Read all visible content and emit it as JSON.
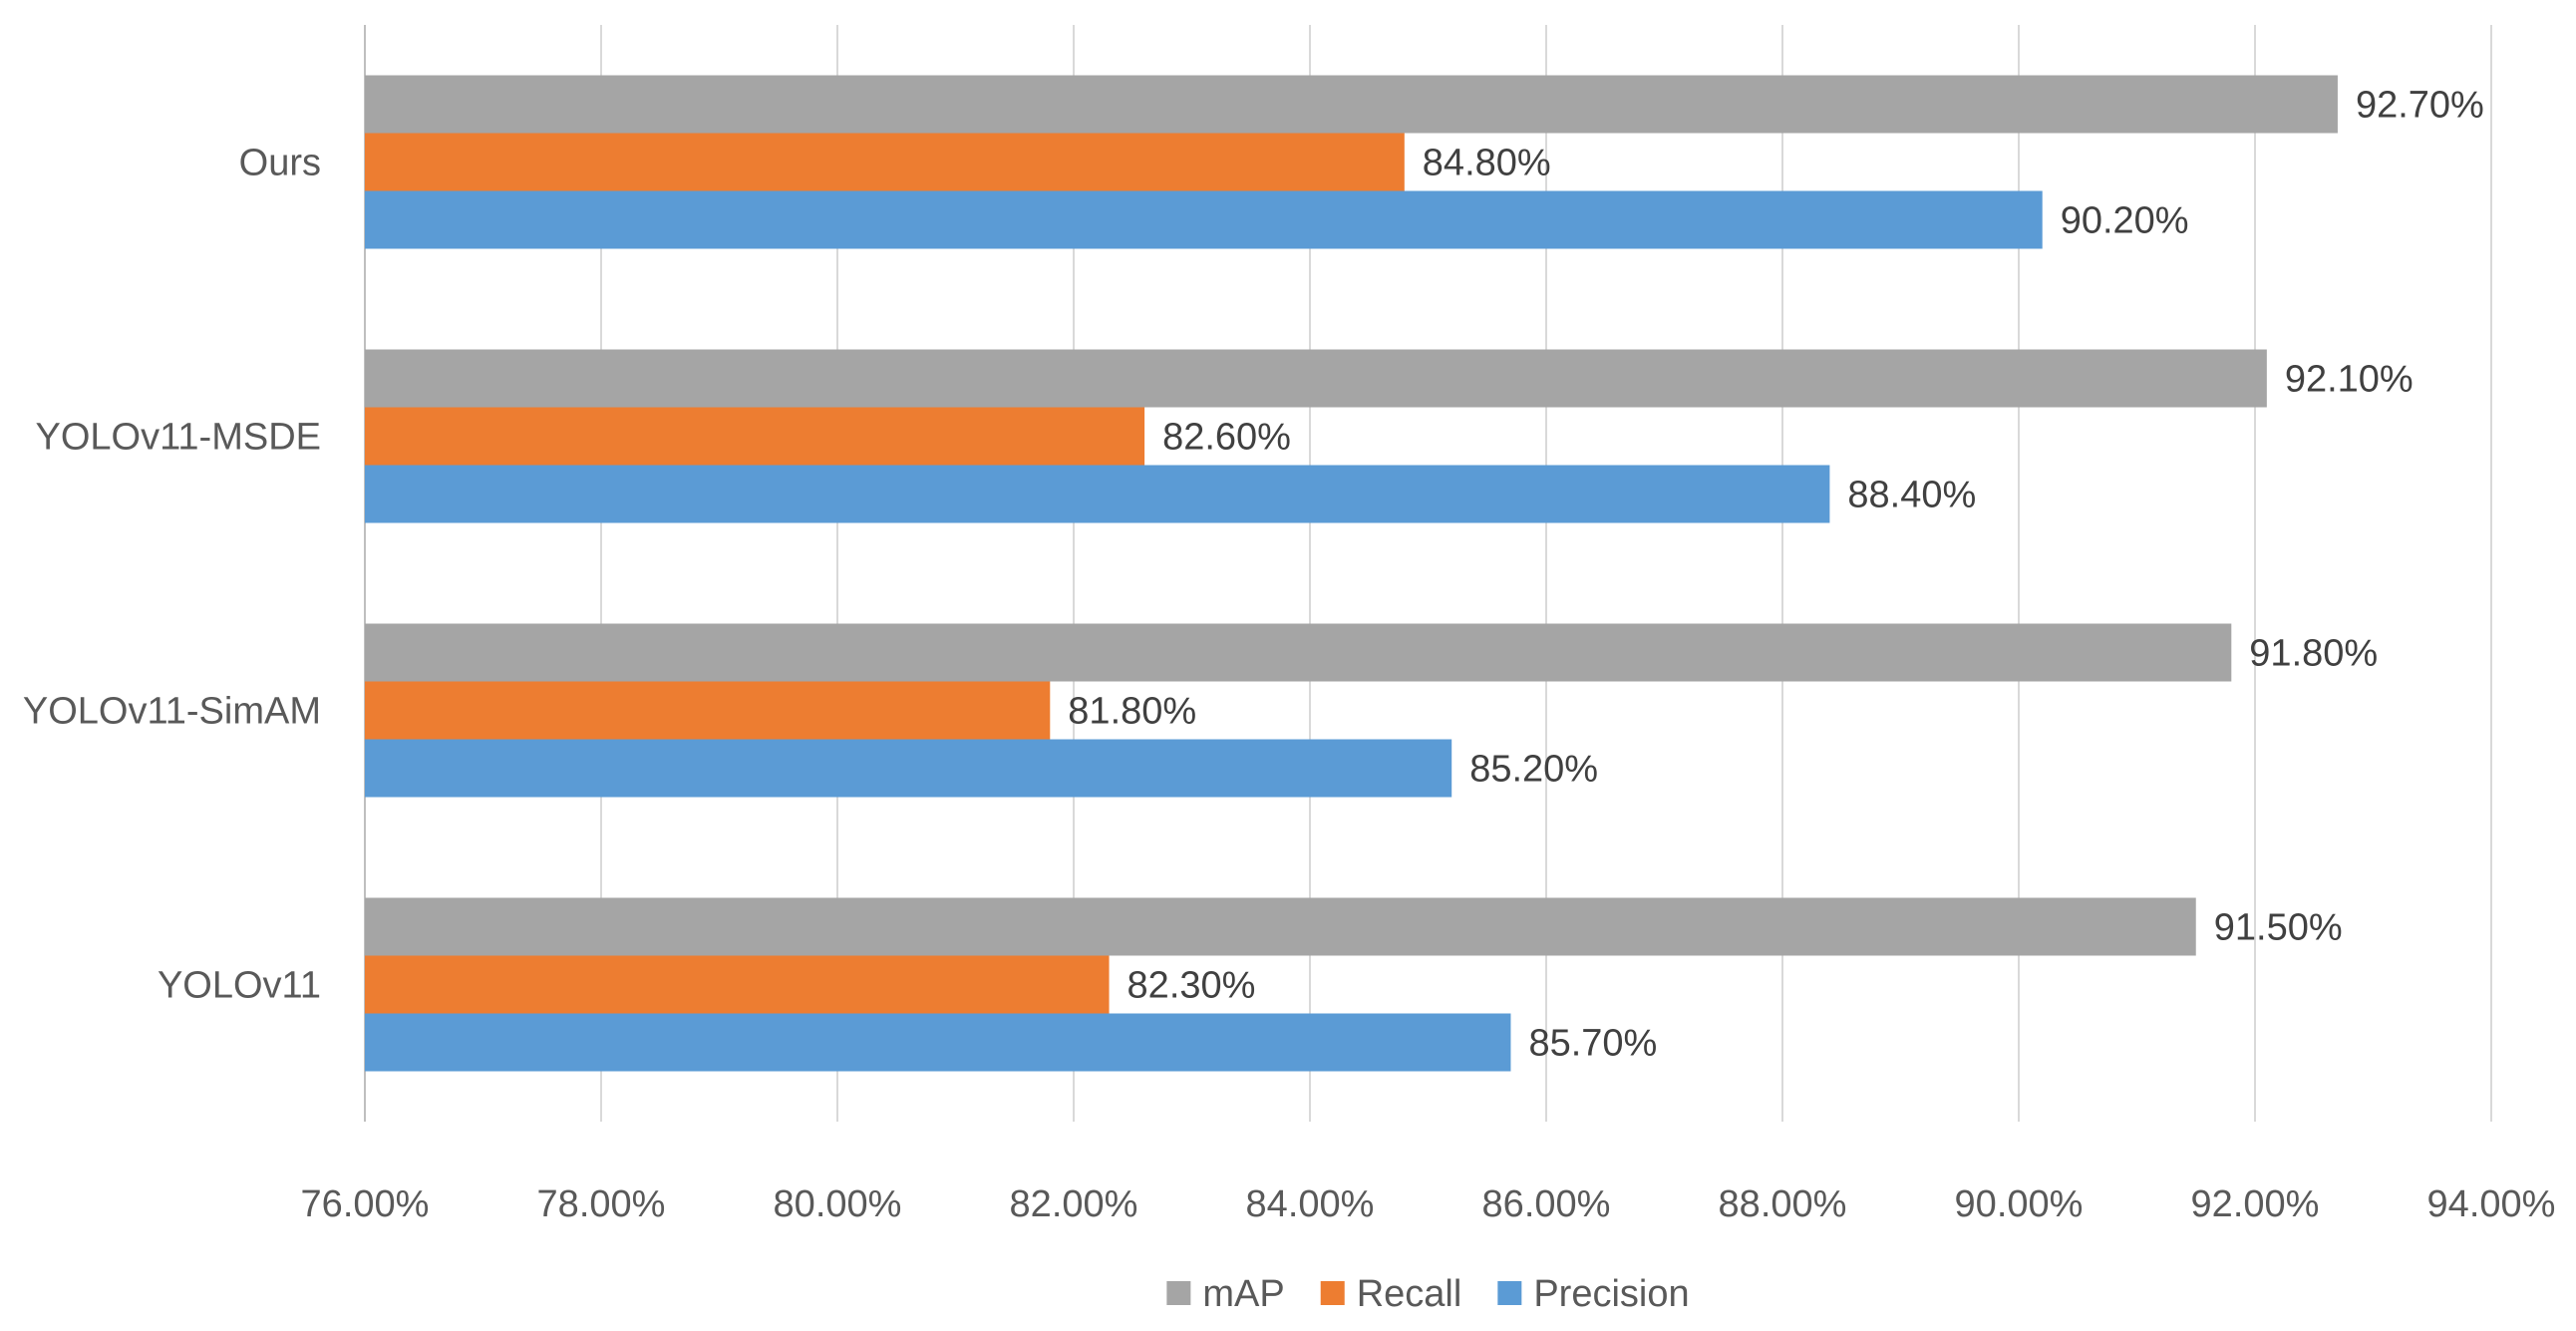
{
  "chart_data": {
    "type": "bar",
    "orientation": "horizontal",
    "categories": [
      "Ours",
      "YOLOv11-MSDE",
      "YOLOv11-SimAM",
      "YOLOv11"
    ],
    "series": [
      {
        "name": "mAP",
        "color": "#a5a5a5",
        "values": [
          92.7,
          92.1,
          91.8,
          91.5
        ],
        "labels": [
          "92.70%",
          "92.10%",
          "91.80%",
          "91.50%"
        ]
      },
      {
        "name": "Recall",
        "color": "#ed7d31",
        "values": [
          84.8,
          82.6,
          81.8,
          82.3
        ],
        "labels": [
          "84.80%",
          "82.60%",
          "81.80%",
          "82.30%"
        ]
      },
      {
        "name": "Precision",
        "color": "#5b9bd5",
        "values": [
          90.2,
          88.4,
          85.2,
          85.7
        ],
        "labels": [
          "90.20%",
          "88.40%",
          "85.20%",
          "85.70%"
        ]
      }
    ],
    "xlim": [
      76,
      94
    ],
    "xticks": [
      76,
      78,
      80,
      82,
      84,
      86,
      88,
      90,
      92,
      94
    ],
    "xtick_labels": [
      "76.00%",
      "78.00%",
      "80.00%",
      "82.00%",
      "84.00%",
      "86.00%",
      "88.00%",
      "90.00%",
      "92.00%",
      "94.00%"
    ],
    "grid": true,
    "legend_position": "bottom",
    "title": "",
    "xlabel": "",
    "ylabel": ""
  }
}
